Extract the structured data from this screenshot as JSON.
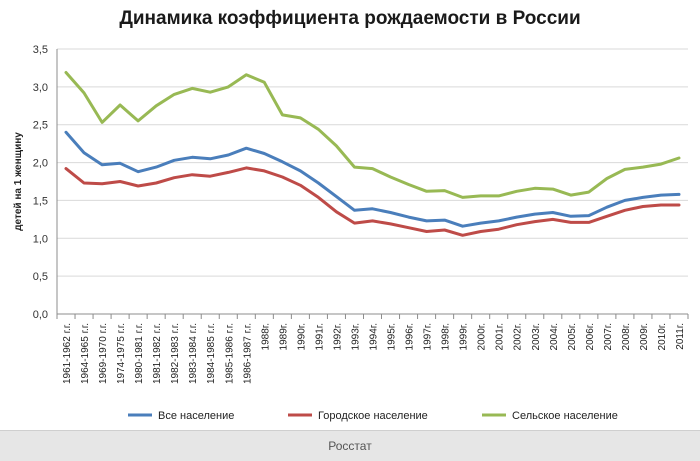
{
  "footer": {
    "source": "Росстат"
  },
  "chart_data": {
    "type": "line",
    "title": "Динамика коэффициента рождаемости в России",
    "xlabel": "",
    "ylabel": "детей на 1 женщину",
    "ylim": [
      0,
      3.5
    ],
    "yticks": [
      "0,0",
      "0,5",
      "1,0",
      "1,5",
      "2,0",
      "2,5",
      "3,0",
      "3,5"
    ],
    "grid": true,
    "legend": "bottom",
    "categories": [
      "1961-1962 г.г.",
      "1964-1965 г.г.",
      "1969-1970 г.г.",
      "1974-1975 г.г.",
      "1980-1981 г.г.",
      "1981-1982 г.г.",
      "1982-1983 г.г.",
      "1983-1984 г.г.",
      "1984-1985 г.г.",
      "1985-1986 г.г.",
      "1986-1987 г.г.",
      "1988г.",
      "1989г.",
      "1990г.",
      "1991г.",
      "1992г.",
      "1993г.",
      "1994г.",
      "1995г.",
      "1996г.",
      "1997г.",
      "1998г.",
      "1999г.",
      "2000г.",
      "2001г.",
      "2002г.",
      "2003г.",
      "2004г.",
      "2005г.",
      "2006г.",
      "2007г.",
      "2008г.",
      "2009г.",
      "2010г.",
      "2011г."
    ],
    "series": [
      {
        "name": "Все население",
        "color": "#4a7ebb",
        "values": [
          2.4,
          2.13,
          1.97,
          1.99,
          1.88,
          1.94,
          2.03,
          2.07,
          2.05,
          2.1,
          2.19,
          2.12,
          2.01,
          1.89,
          1.73,
          1.55,
          1.37,
          1.39,
          1.34,
          1.28,
          1.23,
          1.24,
          1.16,
          1.2,
          1.23,
          1.28,
          1.32,
          1.34,
          1.29,
          1.3,
          1.41,
          1.5,
          1.54,
          1.57,
          1.58
        ]
      },
      {
        "name": "Городское население",
        "color": "#be4b48",
        "values": [
          1.92,
          1.73,
          1.72,
          1.75,
          1.69,
          1.73,
          1.8,
          1.84,
          1.82,
          1.87,
          1.93,
          1.89,
          1.81,
          1.7,
          1.54,
          1.35,
          1.2,
          1.23,
          1.19,
          1.14,
          1.09,
          1.11,
          1.04,
          1.09,
          1.12,
          1.18,
          1.22,
          1.25,
          1.21,
          1.21,
          1.29,
          1.37,
          1.42,
          1.44,
          1.44
        ]
      },
      {
        "name": "Сельское население",
        "color": "#98b954",
        "values": [
          3.19,
          2.92,
          2.53,
          2.76,
          2.55,
          2.75,
          2.9,
          2.98,
          2.93,
          3.0,
          3.16,
          3.06,
          2.63,
          2.59,
          2.44,
          2.22,
          1.94,
          1.92,
          1.81,
          1.71,
          1.62,
          1.63,
          1.54,
          1.56,
          1.56,
          1.62,
          1.66,
          1.65,
          1.57,
          1.61,
          1.79,
          1.91,
          1.94,
          1.98,
          2.06
        ]
      }
    ]
  }
}
